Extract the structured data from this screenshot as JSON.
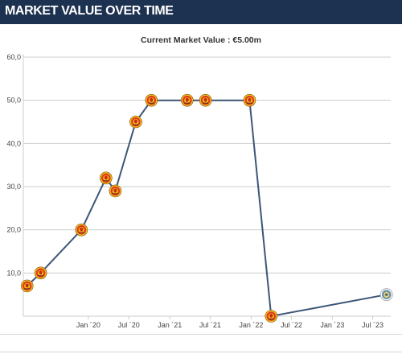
{
  "header": {
    "title": "MARKET VALUE OVER TIME"
  },
  "subtitle": "Current Market Value : €5.00m",
  "colors": {
    "header_bg": "#1d3150",
    "line": "#3d5677",
    "grid": "#cccccc",
    "club_marker_primary": "#e03a1c",
    "club_marker_secondary": "#f2c21a",
    "current_club_marker": "#6a8fb0"
  },
  "icons": {
    "club_badge": "club-crest-icon",
    "current_club_badge": "current-club-crest-icon"
  },
  "chart_data": {
    "type": "line",
    "title": "",
    "xlabel": "",
    "ylabel": "",
    "ylim": [
      0,
      60
    ],
    "y_ticks": [
      "10,0",
      "20,0",
      "30,0",
      "40,0",
      "50,0",
      "60,0"
    ],
    "y_tick_values": [
      10,
      20,
      30,
      40,
      50,
      60
    ],
    "x_ticks": [
      "Jan ´20",
      "Jul ´20",
      "Jan ´21",
      "Jul ´21",
      "Jan ´22",
      "Jul ´22",
      "Jan ´23",
      "Jul ´23"
    ],
    "x_tick_dates": [
      "2020-01-01",
      "2020-07-01",
      "2021-01-01",
      "2021-07-01",
      "2022-01-01",
      "2022-07-01",
      "2023-01-01",
      "2023-07-01"
    ],
    "xlim": [
      "2019-03-15",
      "2023-09-20"
    ],
    "grid": true,
    "legend": "none",
    "series": [
      {
        "values_unit": "€m",
        "points": [
          {
            "date": "2019-04-01",
            "value": 7
          },
          {
            "date": "2019-06-01",
            "value": 10
          },
          {
            "date": "2019-12-01",
            "value": 20
          },
          {
            "date": "2020-03-20",
            "value": 32
          },
          {
            "date": "2020-05-01",
            "value": 29
          },
          {
            "date": "2020-08-01",
            "value": 45
          },
          {
            "date": "2020-10-10",
            "value": 50
          },
          {
            "date": "2021-03-20",
            "value": 50
          },
          {
            "date": "2021-06-10",
            "value": 50
          },
          {
            "date": "2021-12-25",
            "value": 50
          },
          {
            "date": "2022-04-01",
            "value": 0
          },
          {
            "date": "2023-09-01",
            "value": 5
          }
        ]
      }
    ]
  }
}
